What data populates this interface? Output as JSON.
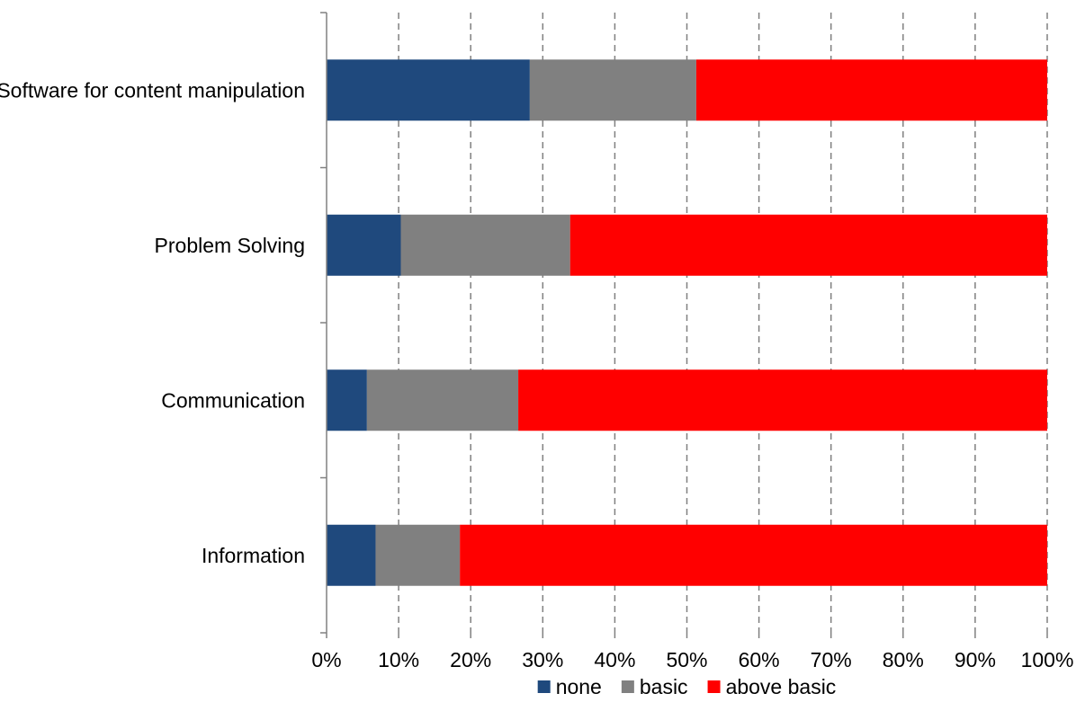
{
  "chart_data": {
    "type": "bar",
    "orientation": "horizontal",
    "stacked": "percent",
    "title": "",
    "xlabel": "",
    "ylabel": "",
    "xlim": [
      0,
      100
    ],
    "x_tick_labels": [
      "0%",
      "10%",
      "20%",
      "30%",
      "40%",
      "50%",
      "60%",
      "70%",
      "80%",
      "90%",
      "100%"
    ],
    "grid": "vertical dashed",
    "legend_position": "bottom",
    "categories": [
      "Software for content manipulation",
      "Problem Solving",
      "Communication",
      "Information"
    ],
    "series": [
      {
        "name": "none",
        "color": "#1f497d",
        "values": [
          28.2,
          10.3,
          5.6,
          6.8
        ]
      },
      {
        "name": "basic",
        "color": "#808080",
        "values": [
          23.1,
          23.5,
          21.0,
          11.7
        ]
      },
      {
        "name": "above basic",
        "color": "#ff0000",
        "values": [
          48.7,
          66.2,
          73.4,
          81.5
        ]
      }
    ]
  }
}
